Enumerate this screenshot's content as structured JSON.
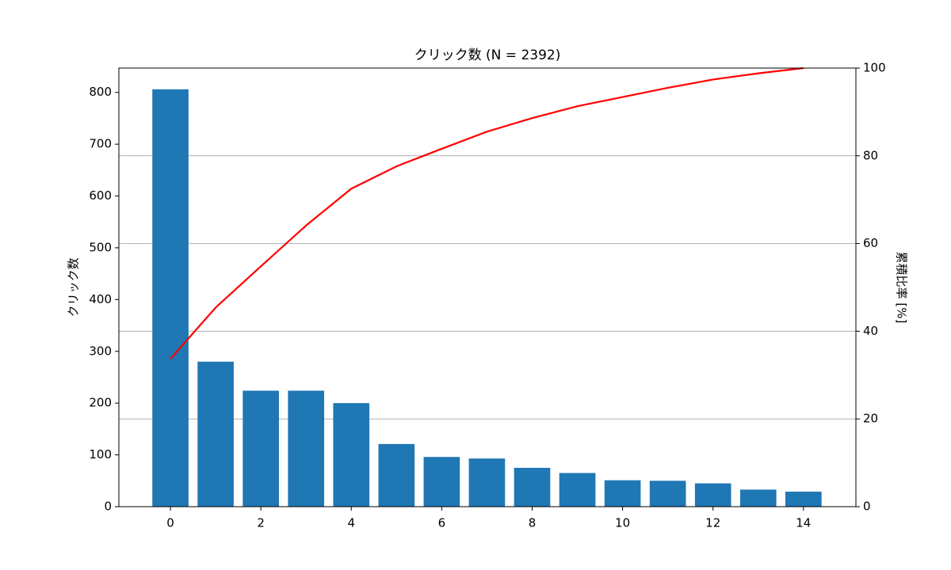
{
  "chart_data": {
    "type": "bar",
    "title": "クリック数 (N = 2392)",
    "ylabel": "クリック数",
    "y2label": "累積比率 [%]",
    "x": [
      0,
      1,
      2,
      3,
      4,
      5,
      6,
      7,
      8,
      9,
      10,
      11,
      12,
      13,
      14
    ],
    "series": [
      {
        "type": "bar",
        "color": "#1f77b4",
        "values": [
          806,
          280,
          224,
          224,
          200,
          121,
          96,
          93,
          75,
          65,
          51,
          50,
          45,
          33,
          29
        ]
      },
      {
        "type": "line",
        "axis": "y2",
        "color": "#ff0000",
        "values": [
          33.7,
          45.4,
          54.8,
          64.1,
          72.5,
          77.6,
          81.6,
          85.5,
          88.6,
          91.3,
          93.4,
          95.5,
          97.4,
          98.8,
          100
        ]
      }
    ],
    "xlim": [
      -1.14,
      15.16
    ],
    "xticks": [
      0,
      2,
      4,
      6,
      8,
      10,
      12,
      14
    ],
    "ylim": [
      0,
      847
    ],
    "yticks": [
      0,
      100,
      200,
      300,
      400,
      500,
      600,
      700,
      800
    ],
    "y2lim": [
      0,
      100
    ],
    "y2ticks": [
      0,
      20,
      40,
      60,
      80,
      100
    ],
    "grid": "y2"
  }
}
